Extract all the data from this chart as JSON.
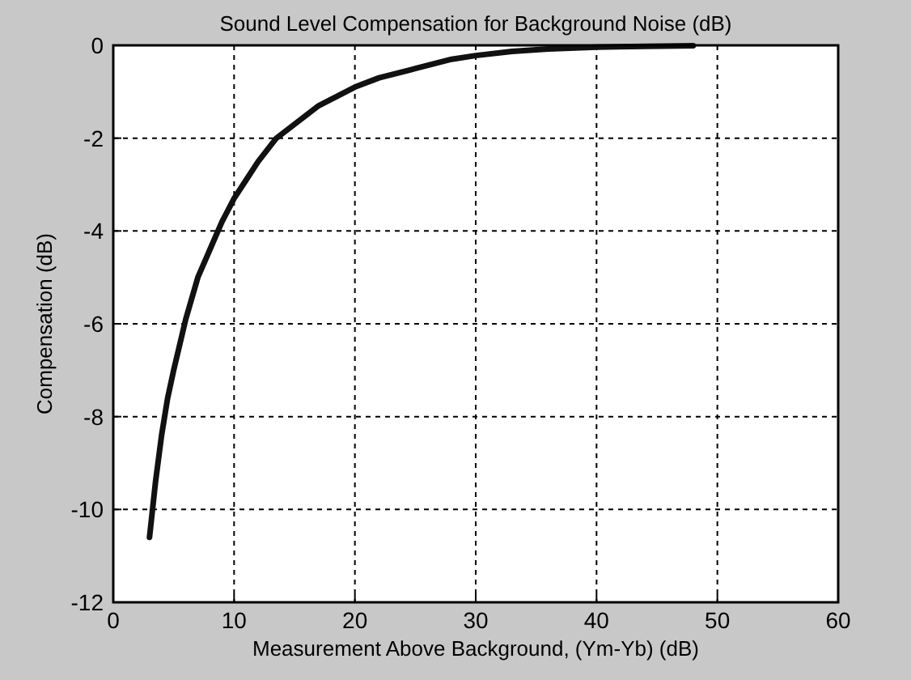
{
  "chart_data": {
    "type": "line",
    "title": "Sound Level Compensation for Background Noise (dB)",
    "xlabel": "Measurement Above Background, (Ym-Yb) (dB)",
    "ylabel": "Compensation (dB)",
    "x": [
      3,
      3.5,
      4,
      4.5,
      5,
      6,
      7,
      8,
      9,
      10,
      11,
      12,
      13.5,
      15,
      17,
      20,
      22,
      25,
      28,
      30,
      33,
      36,
      40,
      44,
      48
    ],
    "series": [
      {
        "color": "#111111",
        "values": [
          -10.6,
          -9.4,
          -8.4,
          -7.6,
          -7,
          -5.9,
          -5,
          -4.4,
          -3.8,
          -3.3,
          -2.9,
          -2.5,
          -2,
          -1.7,
          -1.3,
          -0.9,
          -0.7,
          -0.5,
          -0.3,
          -0.22,
          -0.13,
          -0.08,
          -0.04,
          -0.02,
          -0.01
        ]
      }
    ],
    "xlim": [
      0,
      60
    ],
    "ylim": [
      -12,
      0
    ],
    "xticks": [
      0,
      10,
      20,
      30,
      40,
      50,
      60
    ],
    "yticks": [
      -12,
      -10,
      -8,
      -6,
      -4,
      -2,
      0
    ],
    "grid": true,
    "line_style": "solid",
    "marker": "none"
  }
}
